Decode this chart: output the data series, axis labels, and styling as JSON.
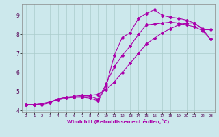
{
  "xlabel": "Windchill (Refroidissement éolien,°C)",
  "background_color": "#cce8ec",
  "grid_color": "#aacccc",
  "line_color": "#aa00aa",
  "xlim": [
    -0.5,
    23.5
  ],
  "ylim": [
    3.9,
    9.6
  ],
  "yticks": [
    4,
    5,
    6,
    7,
    8,
    9
  ],
  "xticks": [
    0,
    1,
    2,
    3,
    4,
    5,
    6,
    7,
    8,
    9,
    10,
    11,
    12,
    13,
    14,
    15,
    16,
    17,
    18,
    19,
    20,
    21,
    22,
    23
  ],
  "line1_x": [
    0,
    1,
    2,
    3,
    4,
    5,
    6,
    7,
    8,
    9,
    10,
    11,
    12,
    13,
    14,
    15,
    16,
    17,
    18,
    19,
    20,
    21,
    22,
    23
  ],
  "line1_y": [
    4.3,
    4.3,
    4.3,
    4.4,
    4.6,
    4.7,
    4.7,
    4.7,
    4.65,
    4.5,
    5.3,
    6.9,
    7.85,
    8.1,
    8.85,
    9.1,
    9.3,
    9.0,
    8.9,
    8.85,
    8.75,
    8.6,
    8.25,
    8.25
  ],
  "line2_x": [
    0,
    1,
    2,
    3,
    4,
    5,
    6,
    7,
    8,
    9,
    10,
    11,
    12,
    13,
    14,
    15,
    16,
    17,
    18,
    19,
    20,
    21,
    22,
    23
  ],
  "line2_y": [
    4.3,
    4.3,
    4.35,
    4.45,
    4.55,
    4.65,
    4.7,
    4.75,
    4.8,
    4.85,
    5.1,
    5.5,
    6.0,
    6.5,
    7.0,
    7.5,
    7.8,
    8.1,
    8.3,
    8.5,
    8.6,
    8.6,
    8.3,
    7.75
  ],
  "line3_x": [
    0,
    1,
    2,
    3,
    4,
    5,
    6,
    7,
    8,
    9,
    10,
    11,
    12,
    13,
    14,
    15,
    16,
    17,
    18,
    19,
    20,
    21,
    22,
    23
  ],
  "line3_y": [
    4.3,
    4.3,
    4.35,
    4.45,
    4.6,
    4.7,
    4.75,
    4.8,
    4.75,
    4.6,
    5.4,
    6.3,
    6.9,
    7.4,
    8.0,
    8.5,
    8.55,
    8.6,
    8.65,
    8.6,
    8.5,
    8.4,
    8.2,
    7.75
  ]
}
